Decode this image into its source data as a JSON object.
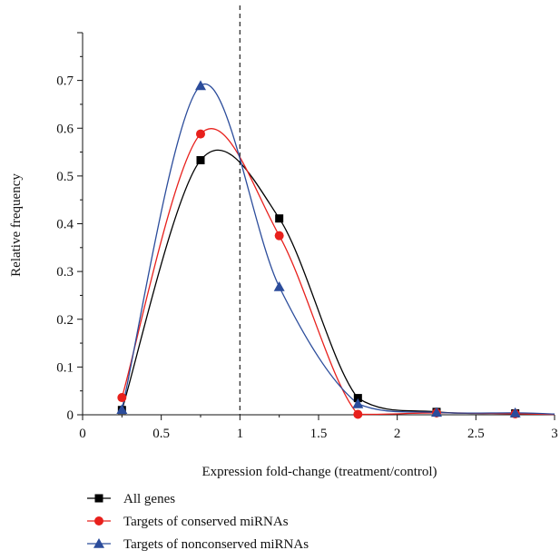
{
  "chart_data": {
    "type": "line",
    "xlabel": "Expression fold-change (treatment/control)",
    "ylabel": "Relative frequency",
    "xlim": [
      0,
      3
    ],
    "ylim": [
      0,
      0.8
    ],
    "xticks": [
      0,
      0.5,
      1,
      1.5,
      2,
      2.5,
      3
    ],
    "xtick_labels": [
      "0",
      "0.5",
      "1",
      "1.5",
      "2",
      "2.5",
      "3"
    ],
    "yticks": [
      0,
      0.1,
      0.2,
      0.3,
      0.4,
      0.5,
      0.6,
      0.7
    ],
    "ytick_labels": [
      "0",
      "0.1",
      "0.2",
      "0.3",
      "0.4",
      "0.5",
      "0.6",
      "0.7"
    ],
    "reference_line_x": 1,
    "legend_position": "bottom",
    "series": [
      {
        "name": "All genes",
        "color": "#000000",
        "marker": "square",
        "x": [
          0.25,
          0.75,
          1.25,
          1.75,
          2.25,
          2.75
        ],
        "y": [
          0.01,
          0.533,
          0.411,
          0.035,
          0.006,
          0.003
        ]
      },
      {
        "name": "Targets of conserved miRNAs",
        "color": "#e8201c",
        "marker": "circle",
        "x": [
          0.25,
          0.75,
          1.25,
          1.75,
          2.25,
          2.75
        ],
        "y": [
          0.036,
          0.588,
          0.375,
          0.001,
          0.004,
          0.002
        ]
      },
      {
        "name": "Targets of nonconserved miRNAs",
        "color": "#2b4c9b",
        "marker": "triangle",
        "x": [
          0.25,
          0.75,
          1.25,
          1.75,
          2.25,
          2.75
        ],
        "y": [
          0.011,
          0.689,
          0.268,
          0.023,
          0.005,
          0.004
        ]
      }
    ]
  }
}
